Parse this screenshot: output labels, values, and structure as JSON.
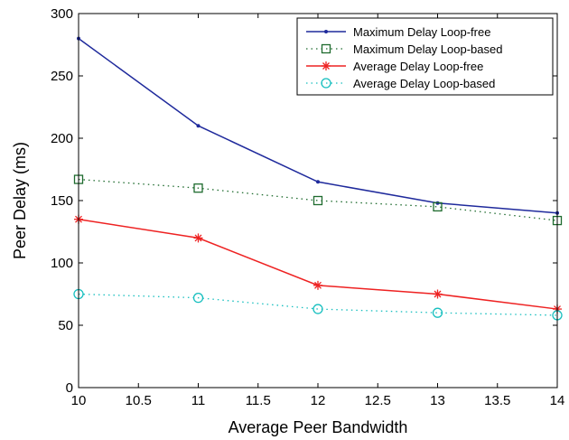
{
  "chart_data": {
    "type": "line",
    "title": "",
    "xlabel": "Average Peer Bandwidth",
    "ylabel": "Peer Delay (ms)",
    "xlim": [
      10,
      14
    ],
    "ylim": [
      0,
      300
    ],
    "x_ticks": [
      "10",
      "10.5",
      "11",
      "11.5",
      "12",
      "12.5",
      "13",
      "13.5",
      "14"
    ],
    "y_ticks": [
      "0",
      "50",
      "100",
      "150",
      "200",
      "250",
      "300"
    ],
    "grid": false,
    "legend_position": "top-right",
    "x": [
      10,
      11,
      12,
      13,
      14
    ],
    "series": [
      {
        "name": "Maximum Delay Loop-free",
        "values": [
          280,
          210,
          165,
          148,
          140
        ],
        "color": "#1f2a9c",
        "line_style": "solid",
        "marker": "dot"
      },
      {
        "name": "Maximum Delay Loop-based",
        "values": [
          167,
          160,
          150,
          145,
          134
        ],
        "color": "#1e6b2e",
        "line_style": "dotted",
        "marker": "square"
      },
      {
        "name": "Average Delay Loop-free",
        "values": [
          135,
          120,
          82,
          75,
          63
        ],
        "color": "#ee2222",
        "line_style": "solid",
        "marker": "asterisk"
      },
      {
        "name": "Average Delay Loop-based",
        "values": [
          75,
          72,
          63,
          60,
          58
        ],
        "color": "#17bfbf",
        "line_style": "dotted",
        "marker": "circle"
      }
    ]
  }
}
